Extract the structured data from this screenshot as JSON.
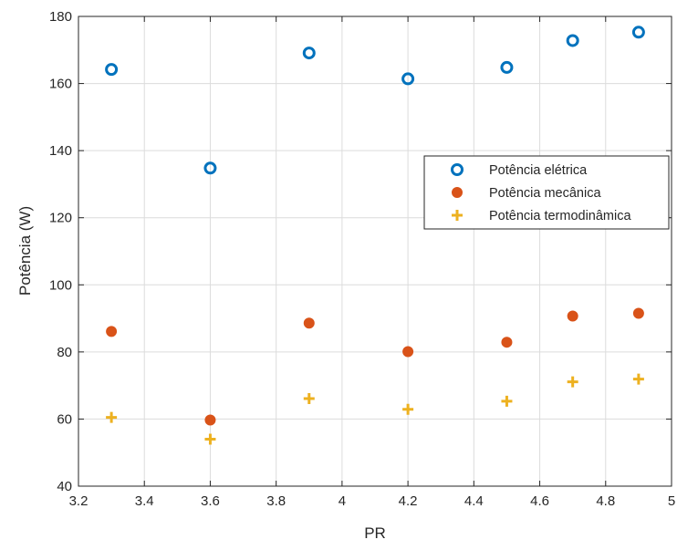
{
  "chart_data": {
    "type": "scatter",
    "xlabel": "PR",
    "ylabel": "Potência (W)",
    "xlim": [
      3.2,
      5.0
    ],
    "ylim": [
      40,
      180
    ],
    "xticks": [
      "3.2",
      "3.4",
      "3.6",
      "3.8",
      "4",
      "4.2",
      "4.4",
      "4.6",
      "4.8",
      "5"
    ],
    "yticks": [
      "40",
      "60",
      "80",
      "100",
      "120",
      "140",
      "160",
      "180"
    ],
    "grid": true,
    "legend_position": "top-right",
    "x": [
      3.3,
      3.6,
      3.9,
      4.2,
      4.5,
      4.7,
      4.9
    ],
    "series": [
      {
        "name": "Potência elétrica",
        "marker": "circle-open",
        "color": "#0072BD",
        "values": [
          164.2,
          134.8,
          169.1,
          161.4,
          164.8,
          172.8,
          175.3
        ]
      },
      {
        "name": "Potência mecânica",
        "marker": "circle-filled",
        "color": "#D95319",
        "values": [
          86.1,
          59.7,
          88.6,
          80.1,
          82.9,
          90.7,
          91.5
        ]
      },
      {
        "name": "Potência termodinâmica",
        "marker": "plus",
        "color": "#EDB120",
        "values": [
          60.5,
          54.0,
          66.1,
          62.9,
          65.3,
          71.1,
          71.9
        ]
      }
    ]
  }
}
